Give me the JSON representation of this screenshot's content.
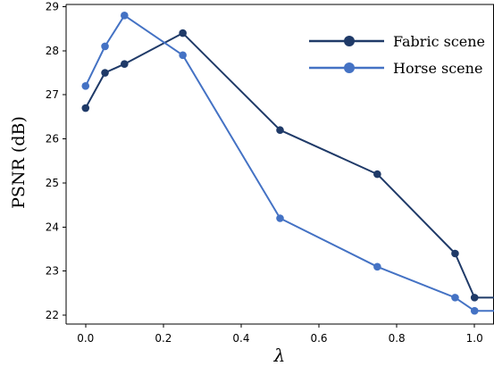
{
  "chart_data": {
    "type": "line",
    "xlabel": "λ",
    "ylabel": "PSNR (dB)",
    "xlim": [
      -0.05,
      1.05
    ],
    "ylim": [
      21.8,
      29.05
    ],
    "xticks": [
      "0.0",
      "0.2",
      "0.4",
      "0.6",
      "0.8",
      "1.0"
    ],
    "yticks": [
      "22",
      "23",
      "24",
      "25",
      "26",
      "27",
      "28",
      "29"
    ],
    "legend_position": "top-right",
    "series": [
      {
        "name": "Fabric scene",
        "color": "#1f3a68",
        "x": [
          0.0,
          0.05,
          0.1,
          0.25,
          0.5,
          0.75,
          0.95,
          1.0
        ],
        "y": [
          26.7,
          27.5,
          27.7,
          28.4,
          26.2,
          25.2,
          23.4,
          22.4
        ],
        "tail_x": 1.05
      },
      {
        "name": "Horse scene",
        "color": "#4472c4",
        "x": [
          0.0,
          0.05,
          0.1,
          0.25,
          0.5,
          0.75,
          0.95,
          1.0
        ],
        "y": [
          27.2,
          28.1,
          28.8,
          27.9,
          24.2,
          23.1,
          22.4,
          22.1
        ],
        "tail_x": 1.05
      }
    ]
  }
}
